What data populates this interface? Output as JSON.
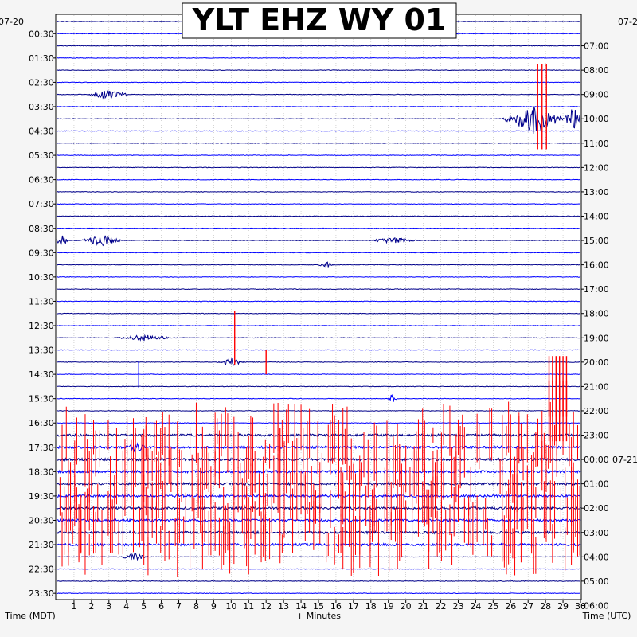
{
  "chart_data": {
    "type": "line",
    "title": "YLT EHZ WY 01",
    "xlabel": "+ Minutes",
    "left_axis_label": "Time (MDT)",
    "right_axis_label": "Time (UTC)",
    "xlim": [
      0,
      30
    ],
    "x_ticks": [
      "1",
      "2",
      "3",
      "4",
      "5",
      "6",
      "7",
      "8",
      "9",
      "10",
      "11",
      "12",
      "13",
      "14",
      "15",
      "16",
      "17",
      "18",
      "19",
      "20",
      "21",
      "22",
      "23",
      "24",
      "25",
      "26",
      "27",
      "28",
      "29",
      "30"
    ],
    "left_date": "07-20",
    "right_date_start": "07-2",
    "right_date_change": "07-21",
    "left_ticks": [
      "00:30",
      "01:30",
      "02:30",
      "03:30",
      "04:30",
      "05:30",
      "06:30",
      "07:30",
      "08:30",
      "09:30",
      "10:30",
      "11:30",
      "12:30",
      "13:30",
      "14:30",
      "15:30",
      "16:30",
      "17:30",
      "18:30",
      "19:30",
      "20:30",
      "21:30",
      "22:30",
      "23:30"
    ],
    "right_ticks": [
      "07:00",
      "08:00",
      "09:00",
      "10:00",
      "11:00",
      "12:00",
      "13:00",
      "14:00",
      "15:00",
      "16:00",
      "17:00",
      "18:00",
      "19:00",
      "20:00",
      "21:00",
      "22:00",
      "23:00",
      "00:00",
      "01:00",
      "02:00",
      "03:00",
      "04:00",
      "05:00",
      "06:00"
    ],
    "traces_per_hour": 2,
    "trace_count": 48,
    "minutes_per_trace": 30,
    "trace_colors": [
      "#00008b",
      "#0000ff"
    ],
    "clip_color": "#ff0000",
    "events": [
      {
        "trace": 6,
        "minute": 3.0,
        "amp": 0.5,
        "dur": 1.2,
        "kind": "noise"
      },
      {
        "trace": 7,
        "minute": 27.8,
        "amp": 3.5,
        "dur": 0.5,
        "kind": "clip"
      },
      {
        "trace": 8,
        "minute": 27.3,
        "amp": 1.6,
        "dur": 1.8,
        "kind": "quake"
      },
      {
        "trace": 8,
        "minute": 29.6,
        "amp": 1.3,
        "dur": 0.6,
        "kind": "quake"
      },
      {
        "trace": 18,
        "minute": 0.3,
        "amp": 0.6,
        "dur": 0.4,
        "kind": "noise"
      },
      {
        "trace": 18,
        "minute": 2.6,
        "amp": 0.6,
        "dur": 1.2,
        "kind": "noise"
      },
      {
        "trace": 18,
        "minute": 19.3,
        "amp": 0.3,
        "dur": 1.4,
        "kind": "noise"
      },
      {
        "trace": 20,
        "minute": 15.4,
        "amp": 0.4,
        "dur": 0.4,
        "kind": "noise"
      },
      {
        "trace": 26,
        "minute": 5.0,
        "amp": 0.3,
        "dur": 1.6,
        "kind": "noise"
      },
      {
        "trace": 26,
        "minute": 10.2,
        "amp": 2.2,
        "dur": 0.1,
        "kind": "clip"
      },
      {
        "trace": 28,
        "minute": 10.0,
        "amp": 0.4,
        "dur": 0.8,
        "kind": "noise"
      },
      {
        "trace": 28,
        "minute": 12.0,
        "amp": 1.0,
        "dur": 0.1,
        "kind": "clip"
      },
      {
        "trace": 29,
        "minute": 4.7,
        "amp": 1.1,
        "dur": 0.1,
        "kind": "spike"
      },
      {
        "trace": 31,
        "minute": 19.2,
        "amp": 0.5,
        "dur": 0.3,
        "kind": "noise"
      },
      {
        "trace": 30,
        "minute": 28.7,
        "amp": 2.5,
        "dur": 1.0,
        "kind": "clip"
      },
      {
        "trace": 32,
        "minute": 28.7,
        "amp": 2.5,
        "dur": 1.0,
        "kind": "clip"
      },
      {
        "trace": 35,
        "minute": 4.5,
        "amp": 0.4,
        "dur": 0.6,
        "kind": "noise"
      },
      {
        "trace": 44,
        "minute": 4.5,
        "amp": 0.4,
        "dur": 0.8,
        "kind": "noise"
      }
    ],
    "clip_band": {
      "from_trace": 34,
      "to_trace": 43,
      "density": 0.55
    }
  }
}
